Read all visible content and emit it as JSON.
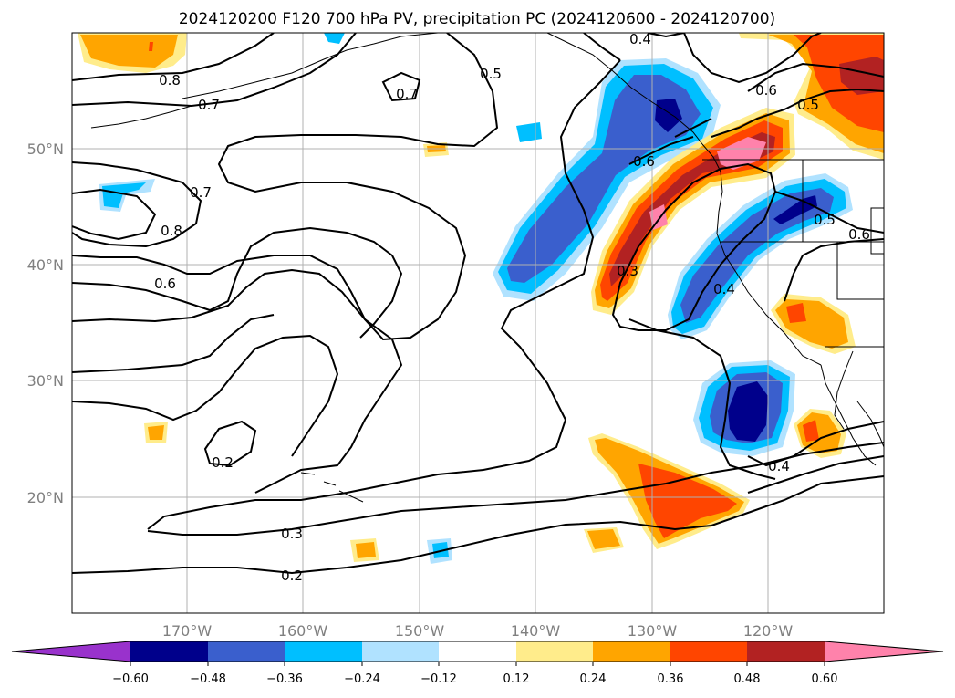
{
  "title": "2024120200 F120 700 hPa PV, precipitation PC (2024120600 - 2024120700)",
  "map": {
    "lon_range": [
      -180,
      -110
    ],
    "lat_range": [
      10,
      60
    ],
    "lon_ticks": [
      "170°W",
      "160°W",
      "150°W",
      "140°W",
      "130°W",
      "120°W"
    ],
    "lat_ticks": [
      "50°N",
      "40°N",
      "30°N",
      "20°N"
    ],
    "tick_color": "#808080",
    "gridlines": true,
    "contour_labels": [
      "0.8",
      "0.7",
      "0.7",
      "0.5",
      "0.4",
      "0.6",
      "0.5",
      "0.7",
      "0.8",
      "0.6",
      "0.6",
      "0.3",
      "0.4",
      "0.5",
      "0.6",
      "0.2",
      "0.3",
      "0.2",
      "0.4"
    ]
  },
  "colorbar": {
    "tick_labels": [
      "−0.60",
      "−0.48",
      "−0.36",
      "−0.24",
      "−0.12",
      "0.12",
      "0.24",
      "0.36",
      "0.48",
      "0.60"
    ],
    "levels": [
      -0.6,
      -0.48,
      -0.36,
      -0.24,
      -0.12,
      0.12,
      0.24,
      0.36,
      0.48,
      0.6
    ],
    "colors": [
      "#9932cc",
      "#00008b",
      "#3a5fcd",
      "#00bfff",
      "#b0e2ff",
      "#ffffff",
      "#ffec8b",
      "#ffa500",
      "#ff4500",
      "#b22222",
      "#ff82ab"
    ],
    "extend": "both"
  }
}
